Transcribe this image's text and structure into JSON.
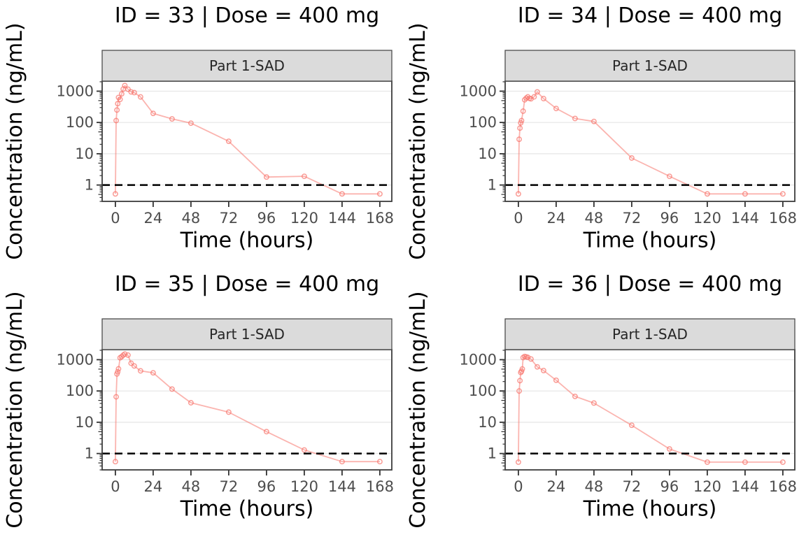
{
  "figure": {
    "background": "#FFFFFF",
    "series_color": "#F8766D",
    "series_line_rgba": "rgba(248,118,109,0.55)",
    "marker_rgba": "rgba(248,118,109,0.72)",
    "grid_color": "#E9E9E9",
    "panel_border_color": "#3D3D3D",
    "strip_fill": "#DBDBDB",
    "strip_border": "#4D4D4D",
    "strip_text_color": "#262626",
    "tick_color": "#333333",
    "tick_label_color": "#4D4D4D",
    "title_color": "#000000",
    "lloq_line_color": "#000000"
  },
  "chart_data": [
    {
      "type": "line",
      "id": 33,
      "title": "ID = 33 | Dose = 400 mg",
      "strip_label": "Part 1-SAD",
      "xlabel": "Time (hours)",
      "ylabel": "Concentration (ng/mL)",
      "y_scale": "log10",
      "x_ticks": [
        0,
        24,
        48,
        72,
        96,
        120,
        144,
        168
      ],
      "y_ticks": [
        1,
        10,
        100,
        1000
      ],
      "xlim": [
        -8.4,
        175.6
      ],
      "ylim": [
        0.3,
        2100
      ],
      "lloq_line": 1,
      "x": [
        0,
        0.5,
        1,
        1.5,
        2,
        3,
        4,
        5,
        6,
        8,
        10,
        12,
        16,
        24,
        36,
        48,
        72,
        96,
        120,
        144,
        168
      ],
      "y": [
        0.52,
        115,
        250,
        400,
        630,
        550,
        820,
        1170,
        1520,
        1160,
        950,
        900,
        655,
        195,
        130,
        95,
        25,
        1.8,
        1.9,
        0.52,
        0.52
      ]
    },
    {
      "type": "line",
      "id": 34,
      "title": "ID = 34 | Dose = 400 mg",
      "strip_label": "Part 1-SAD",
      "xlabel": "Time (hours)",
      "ylabel": "Concentration (ng/mL)",
      "y_scale": "log10",
      "x_ticks": [
        0,
        24,
        48,
        72,
        96,
        120,
        144,
        168
      ],
      "y_ticks": [
        1,
        10,
        100,
        1000
      ],
      "xlim": [
        -8.4,
        175.6
      ],
      "ylim": [
        0.3,
        2100
      ],
      "lloq_line": 1,
      "x": [
        0,
        0.5,
        1,
        1.5,
        2,
        3,
        4,
        5,
        6,
        7,
        8,
        10,
        12,
        16,
        24,
        36,
        48,
        72,
        96,
        120,
        144,
        168
      ],
      "y": [
        0.52,
        29,
        66,
        97,
        115,
        230,
        530,
        600,
        660,
        590,
        570,
        660,
        950,
        580,
        280,
        134,
        108,
        7.3,
        1.9,
        0.52,
        0.52,
        0.52
      ]
    },
    {
      "type": "line",
      "id": 35,
      "title": "ID = 35 | Dose = 400 mg",
      "strip_label": "Part 1-SAD",
      "xlabel": "Time (hours)",
      "ylabel": "Concentration (ng/mL)",
      "y_scale": "log10",
      "x_ticks": [
        0,
        24,
        48,
        72,
        96,
        120,
        144,
        168
      ],
      "y_ticks": [
        1,
        10,
        100,
        1000
      ],
      "xlim": [
        -8.4,
        175.6
      ],
      "ylim": [
        0.3,
        2100
      ],
      "lloq_line": 1,
      "x": [
        0,
        0.5,
        1,
        1.5,
        2,
        3,
        4,
        5,
        6,
        8,
        10,
        12,
        16,
        24,
        36,
        48,
        72,
        96,
        120,
        144,
        168
      ],
      "y": [
        0.55,
        65,
        350,
        410,
        510,
        1150,
        1250,
        1400,
        1520,
        1400,
        770,
        630,
        440,
        380,
        115,
        42,
        21,
        5,
        1.3,
        0.55,
        0.55
      ]
    },
    {
      "type": "line",
      "id": 36,
      "title": "ID = 36 | Dose = 400 mg",
      "strip_label": "Part 1-SAD",
      "xlabel": "Time (hours)",
      "ylabel": "Concentration (ng/mL)",
      "y_scale": "log10",
      "x_ticks": [
        0,
        24,
        48,
        72,
        96,
        120,
        144,
        168
      ],
      "y_ticks": [
        1,
        10,
        100,
        1000
      ],
      "xlim": [
        -8.4,
        175.6
      ],
      "ylim": [
        0.3,
        2100
      ],
      "lloq_line": 1,
      "x": [
        0,
        0.5,
        1,
        1.5,
        2,
        2.5,
        3,
        4,
        5,
        6,
        8,
        12,
        16,
        24,
        36,
        48,
        72,
        96,
        120,
        144,
        168
      ],
      "y": [
        0.53,
        100,
        214,
        390,
        430,
        505,
        1170,
        1270,
        1230,
        1190,
        1050,
        590,
        450,
        220,
        67,
        41,
        8,
        1.4,
        0.53,
        0.53,
        0.53
      ]
    }
  ]
}
